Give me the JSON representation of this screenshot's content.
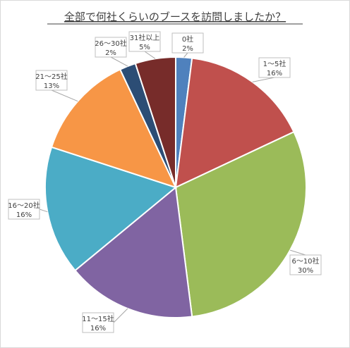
{
  "chart_data": {
    "type": "pie",
    "title": "全部で何社くらいのブースを訪問しましたか？",
    "slices": [
      {
        "label": "0社",
        "value": 2,
        "value_label": "2%",
        "color": "#4F81BD"
      },
      {
        "label": "1～5社",
        "value": 16,
        "value_label": "16%",
        "color": "#C0504D"
      },
      {
        "label": "6～10社",
        "value": 30,
        "value_label": "30%",
        "color": "#9BBB59"
      },
      {
        "label": "11～15社",
        "value": 16,
        "value_label": "16%",
        "color": "#8064A2"
      },
      {
        "label": "16～20社",
        "value": 16,
        "value_label": "16%",
        "color": "#4BACC6"
      },
      {
        "label": "21～25社",
        "value": 13,
        "value_label": "13%",
        "color": "#F79646"
      },
      {
        "label": "26～30社",
        "value": 2,
        "value_label": "2%",
        "color": "#2C4D75"
      },
      {
        "label": "31社以上",
        "value": 5,
        "value_label": "5%",
        "color": "#772C2A"
      }
    ],
    "legend": "none",
    "start": "top, clockwise"
  }
}
